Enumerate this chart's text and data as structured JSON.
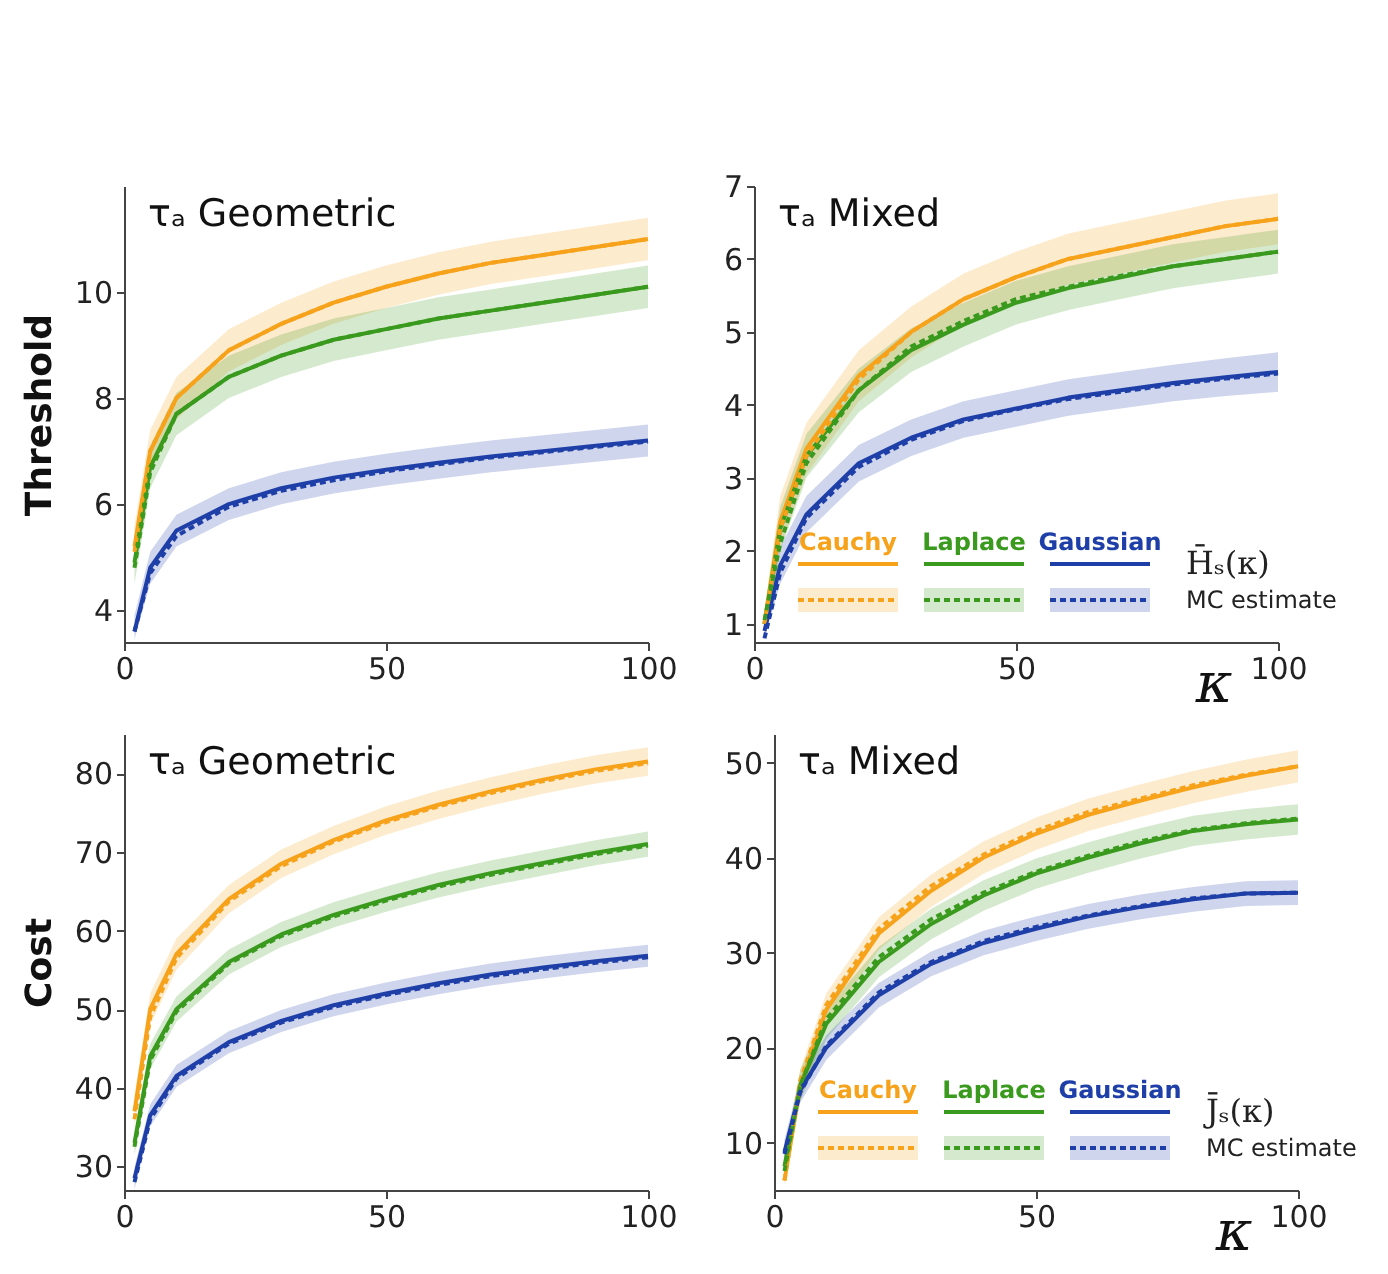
{
  "chart_data": [
    {
      "type": "line",
      "title": "τₐ Geometric",
      "ylabel": "Threshold",
      "x": [
        2,
        5,
        10,
        20,
        30,
        40,
        50,
        60,
        70,
        80,
        90,
        100
      ],
      "xlim": [
        0,
        100
      ],
      "xticks": [
        0,
        50,
        100
      ],
      "ylim": [
        3.4,
        12
      ],
      "yticks": [
        4,
        6,
        8,
        10
      ],
      "series": [
        {
          "color": "#f7a21b",
          "values": [
            5.2,
            7.0,
            8.0,
            8.9,
            9.4,
            9.8,
            10.1,
            10.35,
            10.55,
            10.7,
            10.85,
            11.0
          ]
        },
        {
          "color": "#f7a21b",
          "line_style": "dashed",
          "values": [
            5.1,
            7.0,
            8.0,
            8.9,
            9.4,
            9.8,
            10.1,
            10.35,
            10.55,
            10.7,
            10.85,
            11.0
          ],
          "lower": [
            4.8,
            6.6,
            7.6,
            8.5,
            9.0,
            9.4,
            9.7,
            9.95,
            10.15,
            10.3,
            10.45,
            10.6
          ],
          "upper": [
            5.6,
            7.4,
            8.4,
            9.3,
            9.8,
            10.2,
            10.5,
            10.75,
            10.95,
            11.1,
            11.25,
            11.4
          ]
        },
        {
          "color": "#3a9a1e",
          "values": [
            4.9,
            6.7,
            7.7,
            8.4,
            8.8,
            9.1,
            9.3,
            9.5,
            9.65,
            9.8,
            9.95,
            10.1
          ]
        },
        {
          "color": "#3a9a1e",
          "line_style": "dashed",
          "values": [
            4.8,
            6.6,
            7.7,
            8.4,
            8.8,
            9.1,
            9.3,
            9.5,
            9.65,
            9.8,
            9.95,
            10.1
          ],
          "lower": [
            4.5,
            6.3,
            7.3,
            8.0,
            8.4,
            8.7,
            8.9,
            9.1,
            9.25,
            9.4,
            9.55,
            9.7
          ],
          "upper": [
            5.3,
            7.1,
            8.1,
            8.8,
            9.2,
            9.5,
            9.7,
            9.9,
            10.05,
            10.2,
            10.35,
            10.5
          ]
        },
        {
          "color": "#1f3fa8",
          "values": [
            3.6,
            4.8,
            5.5,
            6.0,
            6.3,
            6.5,
            6.65,
            6.78,
            6.9,
            7.0,
            7.1,
            7.2
          ]
        },
        {
          "color": "#1f3fa8",
          "line_style": "dashed",
          "values": [
            3.6,
            4.7,
            5.4,
            5.95,
            6.25,
            6.45,
            6.62,
            6.75,
            6.88,
            6.98,
            7.08,
            7.18
          ],
          "lower": [
            3.45,
            4.5,
            5.2,
            5.7,
            6.0,
            6.2,
            6.35,
            6.48,
            6.6,
            6.7,
            6.8,
            6.9
          ],
          "upper": [
            3.9,
            5.1,
            5.8,
            6.3,
            6.6,
            6.8,
            6.95,
            7.08,
            7.2,
            7.3,
            7.4,
            7.5
          ]
        }
      ]
    },
    {
      "type": "line",
      "title": "τₐ Mixed",
      "xlabel": "κ",
      "x": [
        2,
        5,
        10,
        20,
        30,
        40,
        50,
        60,
        70,
        80,
        90,
        100
      ],
      "xlim": [
        0,
        100
      ],
      "xticks": [
        0,
        50,
        100
      ],
      "ylim": [
        0.75,
        7
      ],
      "yticks": [
        1,
        2,
        3,
        4,
        5,
        6,
        7
      ],
      "legend": "bottom",
      "annotations": [
        "H̄ₛ(κ)",
        "MC estimate"
      ],
      "series": [
        {
          "name": "Cauchy",
          "color": "#f7a21b",
          "values": [
            1.0,
            2.4,
            3.4,
            4.4,
            5.0,
            5.45,
            5.75,
            6.0,
            6.15,
            6.3,
            6.45,
            6.55
          ]
        },
        {
          "color": "#f7a21b",
          "line_style": "dashed",
          "values": [
            1.0,
            2.3,
            3.3,
            4.35,
            5.0,
            5.45,
            5.75,
            6.0,
            6.15,
            6.3,
            6.45,
            6.55
          ],
          "lower": [
            0.8,
            2.05,
            3.05,
            4.05,
            4.65,
            5.1,
            5.4,
            5.65,
            5.8,
            5.95,
            6.1,
            6.2
          ],
          "upper": [
            1.2,
            2.75,
            3.75,
            4.75,
            5.35,
            5.8,
            6.1,
            6.35,
            6.5,
            6.65,
            6.8,
            6.9
          ]
        },
        {
          "name": "Laplace",
          "color": "#3a9a1e",
          "values": [
            1.0,
            2.3,
            3.3,
            4.2,
            4.75,
            5.1,
            5.4,
            5.6,
            5.75,
            5.9,
            6.0,
            6.1
          ]
        },
        {
          "color": "#3a9a1e",
          "line_style": "dashed",
          "values": [
            1.05,
            2.1,
            3.2,
            4.2,
            4.8,
            5.15,
            5.45,
            5.62,
            5.77,
            5.9,
            6.0,
            6.1
          ],
          "lower": [
            0.8,
            2.0,
            3.0,
            3.9,
            4.45,
            4.8,
            5.1,
            5.3,
            5.45,
            5.6,
            5.7,
            5.8
          ],
          "upper": [
            1.2,
            2.6,
            3.6,
            4.5,
            5.05,
            5.4,
            5.7,
            5.9,
            6.05,
            6.2,
            6.3,
            6.4
          ]
        },
        {
          "name": "Gaussian",
          "color": "#1f3fa8",
          "values": [
            0.9,
            1.8,
            2.5,
            3.2,
            3.55,
            3.8,
            3.95,
            4.1,
            4.2,
            4.3,
            4.38,
            4.45
          ]
        },
        {
          "color": "#1f3fa8",
          "line_style": "dashed",
          "values": [
            0.8,
            1.7,
            2.45,
            3.15,
            3.52,
            3.78,
            3.94,
            4.08,
            4.18,
            4.28,
            4.36,
            4.43
          ],
          "lower": [
            0.8,
            1.55,
            2.25,
            2.95,
            3.3,
            3.55,
            3.7,
            3.85,
            3.95,
            4.05,
            4.12,
            4.18
          ],
          "upper": [
            1.1,
            2.05,
            2.75,
            3.45,
            3.8,
            4.05,
            4.2,
            4.35,
            4.45,
            4.55,
            4.64,
            4.72
          ]
        }
      ]
    },
    {
      "type": "line",
      "ylabel": "Cost",
      "title": "τₐ Geometric",
      "x": [
        2,
        5,
        10,
        20,
        30,
        40,
        50,
        60,
        70,
        80,
        90,
        100
      ],
      "xlim": [
        0,
        100
      ],
      "xticks": [
        0,
        50,
        100
      ],
      "ylim": [
        27,
        85
      ],
      "yticks": [
        30,
        40,
        50,
        60,
        70,
        80
      ],
      "series": [
        {
          "color": "#f7a21b",
          "values": [
            37,
            50,
            57,
            64,
            68.5,
            71.5,
            74,
            76,
            77.7,
            79.2,
            80.5,
            81.5
          ]
        },
        {
          "color": "#f7a21b",
          "line_style": "dashed",
          "values": [
            36,
            49,
            56.5,
            63.7,
            68.2,
            71.3,
            73.8,
            75.8,
            77.5,
            79,
            80.3,
            81.3
          ],
          "lower": [
            35,
            48,
            55,
            62.2,
            66.7,
            69.7,
            72.2,
            74.2,
            75.9,
            77.4,
            78.7,
            79.7
          ],
          "upper": [
            39,
            52,
            59,
            65.8,
            70.3,
            73.3,
            75.8,
            77.8,
            79.5,
            81,
            82.3,
            83.3
          ]
        },
        {
          "color": "#3a9a1e",
          "values": [
            33,
            44,
            50,
            56,
            59.5,
            62,
            64,
            65.8,
            67.3,
            68.6,
            69.9,
            71
          ]
        },
        {
          "color": "#3a9a1e",
          "line_style": "dashed",
          "values": [
            32.5,
            43.5,
            49.7,
            55.8,
            59.3,
            61.8,
            63.8,
            65.6,
            67.1,
            68.4,
            69.7,
            70.8
          ],
          "lower": [
            31.4,
            42.4,
            48.4,
            54.4,
            57.9,
            60.4,
            62.4,
            64.2,
            65.7,
            67,
            68.3,
            69.4
          ],
          "upper": [
            34.6,
            45.6,
            51.6,
            57.6,
            61.1,
            63.6,
            65.6,
            67.4,
            68.9,
            70.2,
            71.5,
            72.6
          ]
        },
        {
          "color": "#1f3fa8",
          "values": [
            28.5,
            36.5,
            41.5,
            45.8,
            48.5,
            50.5,
            52,
            53.3,
            54.4,
            55.3,
            56.1,
            56.8
          ]
        },
        {
          "color": "#1f3fa8",
          "line_style": "dashed",
          "values": [
            28,
            36,
            41.2,
            45.6,
            48.3,
            50.3,
            51.8,
            53.1,
            54.2,
            55.1,
            55.9,
            56.6
          ],
          "lower": [
            27.1,
            35.1,
            40.1,
            44.4,
            47.1,
            49.1,
            50.6,
            51.9,
            53,
            53.9,
            54.7,
            55.4
          ],
          "upper": [
            29.9,
            37.9,
            42.9,
            47.2,
            49.9,
            51.9,
            53.4,
            54.7,
            55.8,
            56.7,
            57.5,
            58.2
          ]
        }
      ]
    },
    {
      "type": "line",
      "title": "τₐ Mixed",
      "xlabel": "κ",
      "x": [
        2,
        5,
        10,
        20,
        30,
        40,
        50,
        60,
        70,
        80,
        90,
        100
      ],
      "xlim": [
        0,
        100
      ],
      "xticks": [
        0,
        50,
        100
      ],
      "ylim": [
        5,
        53
      ],
      "yticks": [
        10,
        20,
        30,
        40,
        50
      ],
      "legend": "bottom",
      "annotations": [
        "J̄ₛ(κ)",
        "MC estimate"
      ],
      "series": [
        {
          "name": "Cauchy",
          "color": "#f7a21b",
          "values": [
            6,
            16,
            24,
            32,
            36.5,
            40,
            42.5,
            44.5,
            46,
            47.4,
            48.6,
            49.6
          ]
        },
        {
          "color": "#f7a21b",
          "line_style": "dashed",
          "values": [
            6,
            16.5,
            24.5,
            32.5,
            37,
            40.3,
            42.8,
            44.8,
            46.2,
            47.6,
            48.7,
            49.6
          ],
          "lower": [
            5.5,
            14.3,
            22.3,
            30.3,
            34.8,
            38.3,
            40.8,
            42.8,
            44.3,
            45.7,
            46.9,
            47.9
          ],
          "upper": [
            7.7,
            17.7,
            25.7,
            33.7,
            38.2,
            41.7,
            44.2,
            46.2,
            47.7,
            49.1,
            50.3,
            51.3
          ]
        },
        {
          "name": "Laplace",
          "color": "#3a9a1e",
          "values": [
            7.5,
            16,
            22.5,
            29,
            33,
            36,
            38.3,
            40,
            41.5,
            42.8,
            43.5,
            44
          ]
        },
        {
          "color": "#3a9a1e",
          "line_style": "dashed",
          "values": [
            7,
            16,
            23,
            29.5,
            33.5,
            36.3,
            38.5,
            40.2,
            41.7,
            42.9,
            43.6,
            44.1
          ],
          "lower": [
            5.9,
            14.4,
            20.9,
            27.4,
            31.4,
            34.4,
            36.7,
            38.4,
            39.9,
            41.2,
            41.9,
            42.4
          ],
          "upper": [
            9.1,
            17.6,
            24.1,
            30.6,
            34.6,
            37.6,
            39.9,
            41.6,
            43.1,
            44.4,
            45.1,
            45.6
          ]
        },
        {
          "name": "Gaussian",
          "color": "#1f3fa8",
          "values": [
            9,
            15.5,
            20,
            25.5,
            28.8,
            31,
            32.5,
            33.8,
            34.8,
            35.6,
            36.2,
            36.3
          ]
        },
        {
          "color": "#1f3fa8",
          "line_style": "dashed",
          "values": [
            8.8,
            15.3,
            20.2,
            25.8,
            29,
            31.2,
            32.7,
            33.9,
            34.9,
            35.7,
            36.2,
            36.3
          ],
          "lower": [
            7.7,
            14.2,
            18.7,
            24.2,
            27.5,
            29.7,
            31.2,
            32.5,
            33.5,
            34.3,
            34.9,
            35
          ],
          "upper": [
            10.3,
            16.8,
            21.3,
            26.8,
            30.1,
            32.3,
            33.8,
            35.1,
            36.1,
            36.9,
            37.5,
            37.6
          ]
        }
      ]
    }
  ]
}
